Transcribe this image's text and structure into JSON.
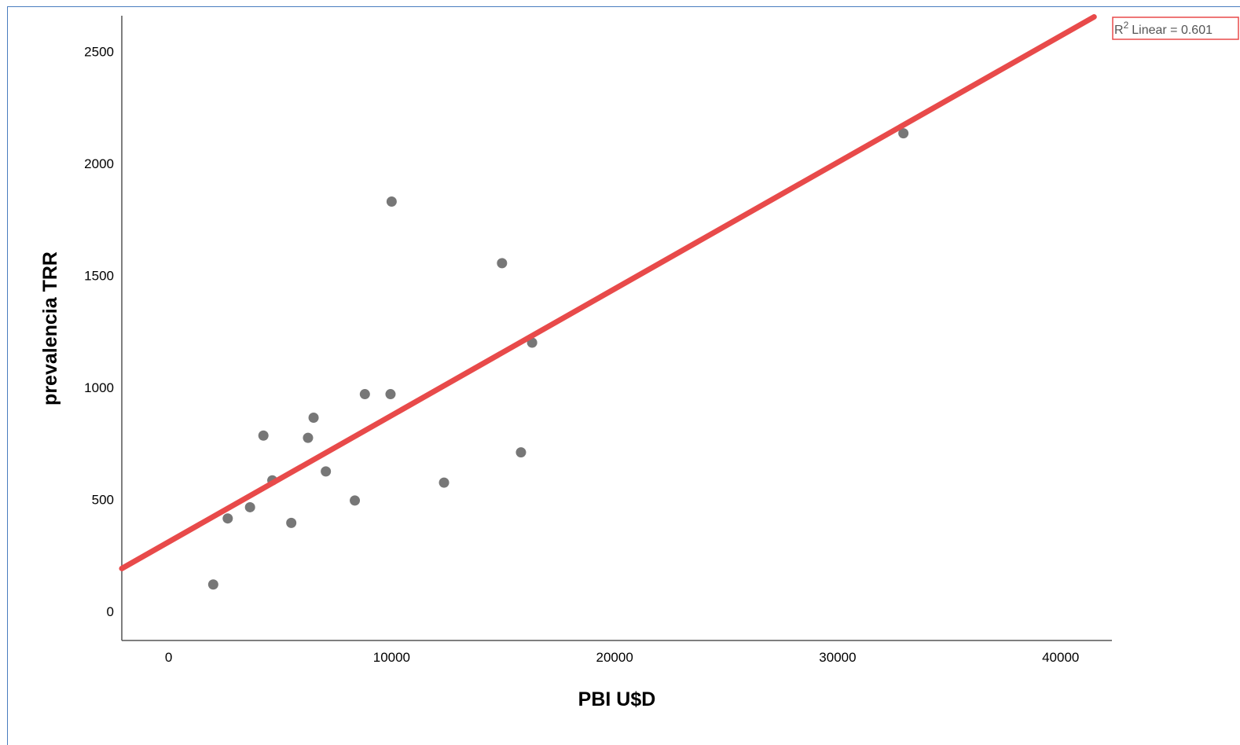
{
  "chart_data": {
    "type": "scatter",
    "xlabel": "PBI U$D",
    "ylabel": "prevalencia TRR",
    "xlim": [
      -2100,
      42300
    ],
    "ylim": [
      -130,
      2660
    ],
    "x_ticks": [
      0,
      10000,
      20000,
      30000,
      40000
    ],
    "y_ticks": [
      0,
      500,
      1000,
      1500,
      2000,
      2500
    ],
    "point_color": "#777777",
    "line_color": "#e84a4a",
    "fit_line": {
      "intercept": 310,
      "slope": 0.0565
    },
    "legend_label": "Linear = 0.601",
    "legend_prefix": "R",
    "legend_sup": "2",
    "points": [
      {
        "x": 2000,
        "y": 120
      },
      {
        "x": 2650,
        "y": 415
      },
      {
        "x": 3650,
        "y": 465
      },
      {
        "x": 4250,
        "y": 785
      },
      {
        "x": 4650,
        "y": 585
      },
      {
        "x": 5500,
        "y": 395
      },
      {
        "x": 6250,
        "y": 775
      },
      {
        "x": 6500,
        "y": 865
      },
      {
        "x": 7050,
        "y": 625
      },
      {
        "x": 8350,
        "y": 495
      },
      {
        "x": 8800,
        "y": 970
      },
      {
        "x": 10000,
        "y": 1830
      },
      {
        "x": 9950,
        "y": 970
      },
      {
        "x": 12350,
        "y": 575
      },
      {
        "x": 14950,
        "y": 1555
      },
      {
        "x": 15800,
        "y": 710
      },
      {
        "x": 16300,
        "y": 1200
      },
      {
        "x": 32950,
        "y": 2135
      }
    ]
  }
}
